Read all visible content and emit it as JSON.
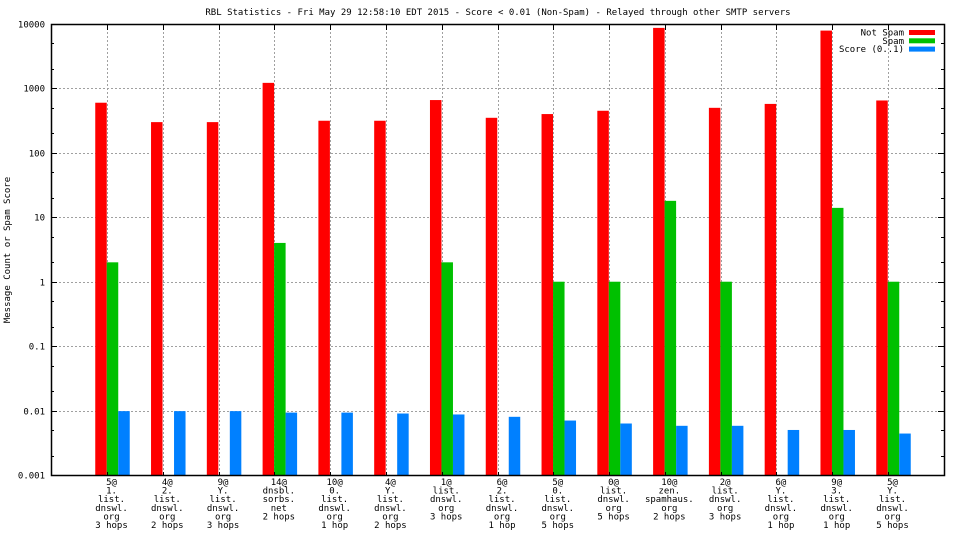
{
  "chart_data": {
    "type": "bar",
    "title": "RBL Statistics - Fri May 29 12:58:10 EDT 2015 - Score < 0.01 (Non-Spam) - Relayed through other SMTP servers",
    "xlabel": "",
    "ylabel": "Message Count or Spam Score",
    "yscale": "log",
    "ylim": [
      0.001,
      10000
    ],
    "yticks": [
      "0.001",
      "0.01",
      "0.1",
      "1",
      "10",
      "100",
      "1000",
      "10000"
    ],
    "ytick_values": [
      0.001,
      0.01,
      0.1,
      1,
      10,
      100,
      1000,
      10000
    ],
    "grid": true,
    "legend_position": "top-right",
    "categories": [
      [
        "5@",
        "1.",
        "list.",
        "dnswl.",
        "org",
        "3 hops"
      ],
      [
        "4@",
        "2.",
        "list.",
        "dnswl.",
        "org",
        "2 hops"
      ],
      [
        "9@",
        "Y.",
        "list.",
        "dnswl.",
        "org",
        "3 hops"
      ],
      [
        "14@",
        "dnsbl.",
        "sorbs.",
        "net",
        "2 hops"
      ],
      [
        "10@",
        "0.",
        "list.",
        "dnswl.",
        "org",
        "1 hop"
      ],
      [
        "4@",
        "Y.",
        "list.",
        "dnswl.",
        "org",
        "2 hops"
      ],
      [
        "1@",
        "list.",
        "dnswl.",
        "org",
        "3 hops"
      ],
      [
        "6@",
        "2.",
        "list.",
        "dnswl.",
        "org",
        "1 hop"
      ],
      [
        "5@",
        "0.",
        "list.",
        "dnswl.",
        "org",
        "5 hops"
      ],
      [
        "0@",
        "list.",
        "dnswl.",
        "org",
        "5 hops"
      ],
      [
        "10@",
        "zen.",
        "spamhaus.",
        "org",
        "2 hops"
      ],
      [
        "2@",
        "list.",
        "dnswl.",
        "org",
        "3 hops"
      ],
      [
        "6@",
        "Y.",
        "list.",
        "dnswl.",
        "org",
        "1 hop"
      ],
      [
        "9@",
        "3.",
        "list.",
        "dnswl.",
        "org",
        "1 hop"
      ],
      [
        "5@",
        "Y.",
        "list.",
        "dnswl.",
        "org",
        "5 hops"
      ]
    ],
    "series": [
      {
        "name": "Not Spam",
        "color": "#ff0000",
        "values": [
          600,
          300,
          300,
          1220,
          315,
          315,
          660,
          350,
          400,
          450,
          8700,
          500,
          575,
          7900,
          650
        ]
      },
      {
        "name": "Spam",
        "color": "#00c000",
        "values": [
          2,
          null,
          null,
          4,
          null,
          null,
          2,
          null,
          1,
          1,
          18,
          1,
          null,
          14,
          1
        ]
      },
      {
        "name": "Score (0..1)",
        "color": "#0080ff",
        "values": [
          0.0098,
          0.0098,
          0.0098,
          0.0093,
          0.0093,
          0.009,
          0.0087,
          0.008,
          0.007,
          0.0063,
          0.0058,
          0.0058,
          0.005,
          0.005,
          0.0044
        ]
      }
    ]
  }
}
